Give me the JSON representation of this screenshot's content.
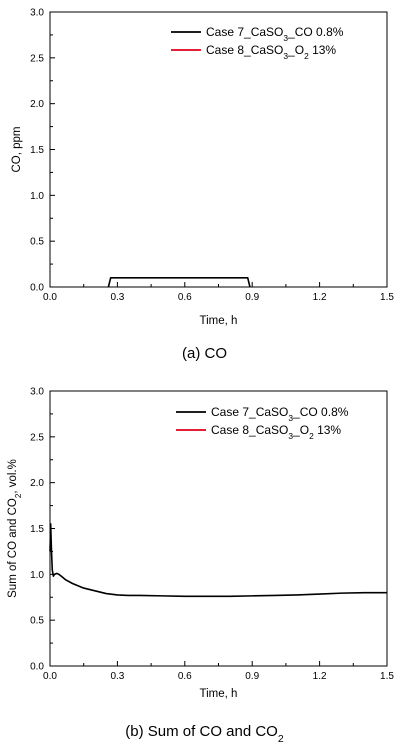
{
  "chart_data": [
    {
      "type": "line",
      "caption": "(a) CO",
      "xlabel": "Time, h",
      "ylabel": "CO, ppm",
      "xlim": [
        0.0,
        1.5
      ],
      "ylim": [
        0.0,
        3.0
      ],
      "xticks": [
        "0.0",
        "0.3",
        "0.6",
        "0.9",
        "1.2",
        "1.5"
      ],
      "yticks": [
        "0.0",
        "0.5",
        "1.0",
        "1.5",
        "2.0",
        "2.5",
        "3.0"
      ],
      "legend_position": "top-right",
      "series": [
        {
          "name": "Case 7_CaSO3_CO 0.8%",
          "name_parts": [
            [
              "Case 7_CaSO",
              "n"
            ],
            [
              "3",
              "sub"
            ],
            [
              "_CO 0.8%",
              "n"
            ]
          ],
          "color": "#000000",
          "x": [
            0.26,
            0.27,
            0.28,
            0.87,
            0.88,
            0.89
          ],
          "y": [
            0.0,
            0.1,
            0.1,
            0.1,
            0.1,
            0.0
          ]
        },
        {
          "name": "Case 8_CaSO3_O2 13%",
          "name_parts": [
            [
              "Case 8_CaSO",
              "n"
            ],
            [
              "3",
              "sub"
            ],
            [
              "_O",
              "n"
            ],
            [
              "2",
              "sub"
            ],
            [
              " 13%",
              "n"
            ]
          ],
          "color": "#e0001b",
          "x": [],
          "y": []
        }
      ]
    },
    {
      "type": "line",
      "caption": "(b) Sum of CO and CO2",
      "caption_parts": [
        [
          "(b) Sum of CO and CO",
          "n"
        ],
        [
          "2",
          "sub"
        ]
      ],
      "xlabel": "Time, h",
      "ylabel": "Sum of CO and CO2, vol.%",
      "ylabel_parts": [
        [
          "Sum of CO and CO",
          "n"
        ],
        [
          "2",
          "sub"
        ],
        [
          ", vol.%",
          "n"
        ]
      ],
      "xlim": [
        0.0,
        1.5
      ],
      "ylim": [
        0.0,
        3.0
      ],
      "xticks": [
        "0.0",
        "0.3",
        "0.6",
        "0.9",
        "1.2",
        "1.5"
      ],
      "yticks": [
        "0.0",
        "0.5",
        "1.0",
        "1.5",
        "2.0",
        "2.5",
        "3.0"
      ],
      "legend_position": "top-right",
      "series": [
        {
          "name": "Case 7_CaSO3_CO 0.8%",
          "name_parts": [
            [
              "Case 7_CaSO",
              "n"
            ],
            [
              "3",
              "sub"
            ],
            [
              "_CO 0.8%",
              "n"
            ]
          ],
          "color": "#000000",
          "x": [
            0.0,
            0.003,
            0.006,
            0.01,
            0.015,
            0.02,
            0.03,
            0.04,
            0.05,
            0.07,
            0.1,
            0.15,
            0.2,
            0.25,
            0.3,
            0.35,
            0.4,
            0.5,
            0.6,
            0.7,
            0.8,
            0.9,
            1.0,
            1.1,
            1.2,
            1.3,
            1.4,
            1.5
          ],
          "y": [
            1.25,
            1.55,
            1.3,
            1.05,
            0.98,
            1.0,
            1.01,
            1.0,
            0.98,
            0.94,
            0.9,
            0.85,
            0.82,
            0.79,
            0.775,
            0.77,
            0.77,
            0.765,
            0.76,
            0.76,
            0.76,
            0.765,
            0.77,
            0.775,
            0.785,
            0.795,
            0.8,
            0.8
          ]
        },
        {
          "name": "Case 8_CaSO3_O2 13%",
          "name_parts": [
            [
              "Case 8_CaSO",
              "n"
            ],
            [
              "3",
              "sub"
            ],
            [
              "_O",
              "n"
            ],
            [
              "2",
              "sub"
            ],
            [
              " 13%",
              "n"
            ]
          ],
          "color": "#e0001b",
          "x": [],
          "y": []
        }
      ]
    }
  ]
}
